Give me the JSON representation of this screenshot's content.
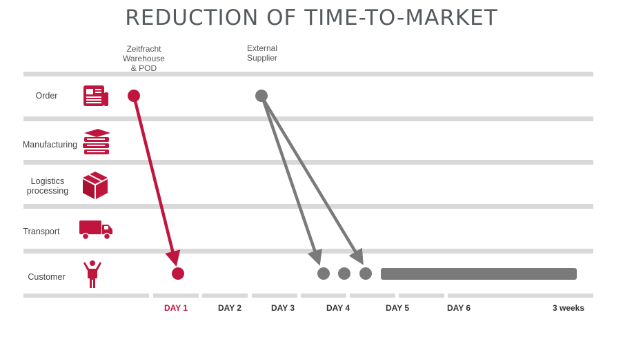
{
  "title": "REDUCTION OF TIME-TO-MARKET",
  "sources": [
    {
      "label": "Zeitfracht\nWarehouse\n& POD"
    },
    {
      "label": "External\nSupplier"
    }
  ],
  "rows": [
    {
      "label": "Order",
      "icon": "newspaper-icon"
    },
    {
      "label": "Manufacturing",
      "icon": "books-icon"
    },
    {
      "label": "Logistics\nprocessing",
      "icon": "box-icon"
    },
    {
      "label": "Transport",
      "icon": "truck-icon"
    },
    {
      "label": "Customer",
      "icon": "person-icon"
    }
  ],
  "days": [
    "DAY 1",
    "DAY 2",
    "DAY 3",
    "DAY 4",
    "DAY 5",
    "DAY 6",
    "3 weeks"
  ],
  "colors": {
    "accent": "#c0163e",
    "gray": "#7a7a7a",
    "track": "#d9d9d9",
    "text": "#555a5f"
  }
}
